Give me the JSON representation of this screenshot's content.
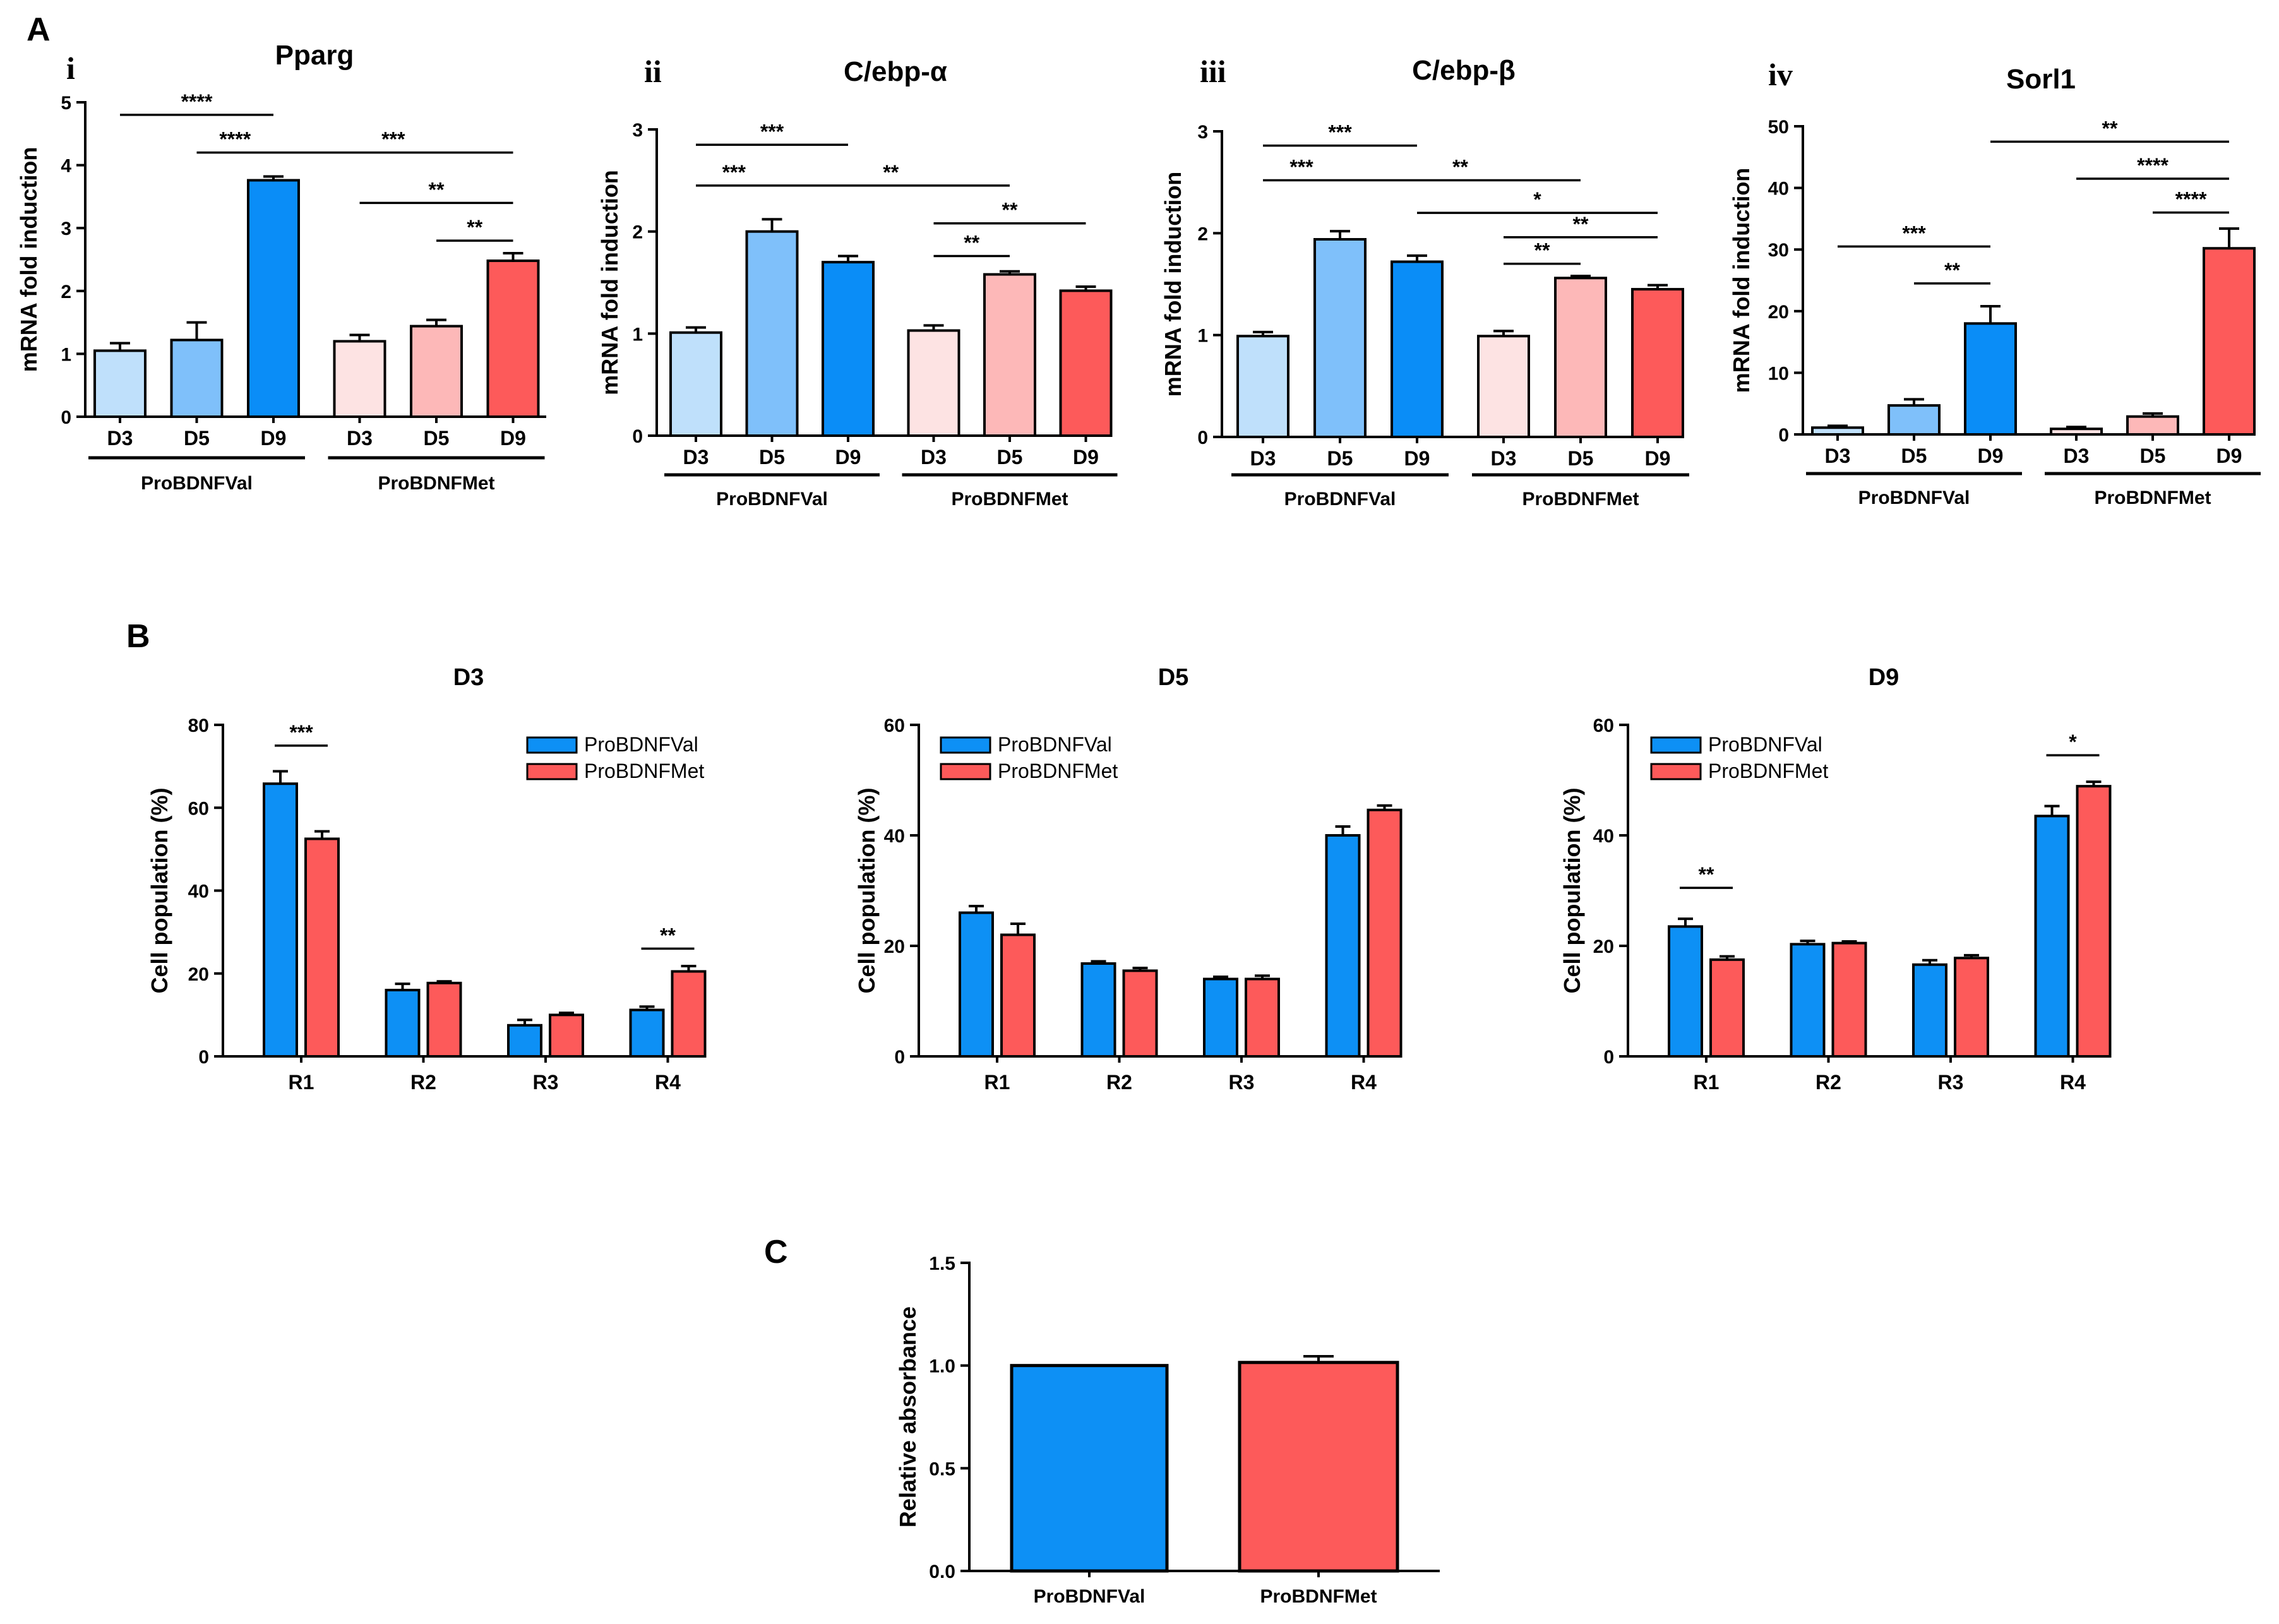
{
  "panel_labels": {
    "A": "A",
    "B": "B",
    "C": "C"
  },
  "colors": {
    "val_light": "#bfe0fb",
    "val_mid": "#7fc0fa",
    "val_dark": "#0a8df7",
    "met_light": "#fde3e3",
    "met_mid": "#fdb8b8",
    "met_dark": "#fd5a5a",
    "blue": "#0d90f5",
    "red": "#fd5a5a"
  },
  "chart_data": [
    {
      "id": "A-i",
      "sublabel": "i",
      "type": "bar",
      "title": "Pparg",
      "ylabel": "mRNA fold induction",
      "ylim": [
        0,
        5
      ],
      "yticks": [
        0,
        1,
        2,
        3,
        4,
        5
      ],
      "categories": [
        "D3",
        "D5",
        "D9",
        "D3",
        "D5",
        "D9"
      ],
      "groups": [
        {
          "label": "ProBDNFVal",
          "from": 0,
          "to": 2
        },
        {
          "label": "ProBDNFMet",
          "from": 3,
          "to": 5
        }
      ],
      "values": [
        1.05,
        1.22,
        3.76,
        1.2,
        1.44,
        2.48
      ],
      "errors": [
        0.12,
        0.28,
        0.06,
        0.1,
        0.1,
        0.12
      ],
      "bar_colors": [
        "val_light",
        "val_mid",
        "val_dark",
        "met_light",
        "met_mid",
        "met_dark"
      ],
      "significance": [
        {
          "from": 0,
          "to": 2,
          "y": 4.8,
          "label": "****"
        },
        {
          "from": 1,
          "to": 2,
          "y": 4.2,
          "label": "****"
        },
        {
          "from": 2,
          "to": 5,
          "y": 4.2,
          "label": "***"
        },
        {
          "from": 3,
          "to": 5,
          "y": 3.4,
          "label": "**"
        },
        {
          "from": 4,
          "to": 5,
          "y": 2.8,
          "label": "**"
        }
      ]
    },
    {
      "id": "A-ii",
      "sublabel": "ii",
      "type": "bar",
      "title": "C/ebp-α",
      "ylabel": "mRNA fold induction",
      "ylim": [
        0,
        3
      ],
      "yticks": [
        0,
        1,
        2,
        3
      ],
      "categories": [
        "D3",
        "D5",
        "D9",
        "D3",
        "D5",
        "D9"
      ],
      "groups": [
        {
          "label": "ProBDNFVal",
          "from": 0,
          "to": 2
        },
        {
          "label": "ProBDNFMet",
          "from": 3,
          "to": 5
        }
      ],
      "values": [
        1.01,
        2.0,
        1.7,
        1.03,
        1.58,
        1.42
      ],
      "errors": [
        0.05,
        0.12,
        0.06,
        0.05,
        0.03,
        0.04
      ],
      "bar_colors": [
        "val_light",
        "val_mid",
        "val_dark",
        "met_light",
        "met_mid",
        "met_dark"
      ],
      "significance": [
        {
          "from": 0,
          "to": 2,
          "y": 2.85,
          "label": "***"
        },
        {
          "from": 0,
          "to": 1,
          "y": 2.45,
          "label": "***"
        },
        {
          "from": 1,
          "to": 4,
          "y": 2.45,
          "label": "**"
        },
        {
          "from": 3,
          "to": 5,
          "y": 2.08,
          "label": "**"
        },
        {
          "from": 3,
          "to": 4,
          "y": 1.76,
          "label": "**"
        }
      ]
    },
    {
      "id": "A-iii",
      "sublabel": "iii",
      "type": "bar",
      "title": "C/ebp-β",
      "ylabel": "mRNA fold induction",
      "ylim": [
        0,
        3
      ],
      "yticks": [
        0,
        1,
        2,
        3
      ],
      "categories": [
        "D3",
        "D5",
        "D9",
        "D3",
        "D5",
        "D9"
      ],
      "groups": [
        {
          "label": "ProBDNFVal",
          "from": 0,
          "to": 2
        },
        {
          "label": "ProBDNFMet",
          "from": 3,
          "to": 5
        }
      ],
      "values": [
        0.99,
        1.94,
        1.72,
        0.99,
        1.56,
        1.45
      ],
      "errors": [
        0.04,
        0.08,
        0.06,
        0.05,
        0.02,
        0.04
      ],
      "bar_colors": [
        "val_light",
        "val_mid",
        "val_dark",
        "met_light",
        "met_mid",
        "met_dark"
      ],
      "significance": [
        {
          "from": 0,
          "to": 2,
          "y": 2.86,
          "label": "***"
        },
        {
          "from": 0,
          "to": 1,
          "y": 2.52,
          "label": "***"
        },
        {
          "from": 1,
          "to": 4,
          "y": 2.52,
          "label": "**"
        },
        {
          "from": 2,
          "to": 5,
          "y": 2.2,
          "label": "*"
        },
        {
          "from": 3,
          "to": 5,
          "y": 1.96,
          "label": "**"
        },
        {
          "from": 3,
          "to": 4,
          "y": 1.7,
          "label": "**"
        }
      ]
    },
    {
      "id": "A-iv",
      "sublabel": "iv",
      "type": "bar",
      "title": "Sorl1",
      "ylabel": "mRNA fold induction",
      "ylim": [
        0,
        50
      ],
      "yticks": [
        0,
        10,
        20,
        30,
        40,
        50
      ],
      "categories": [
        "D3",
        "D5",
        "D9",
        "D3",
        "D5",
        "D9"
      ],
      "groups": [
        {
          "label": "ProBDNFVal",
          "from": 0,
          "to": 2
        },
        {
          "label": "ProBDNFMet",
          "from": 3,
          "to": 5
        }
      ],
      "values": [
        1.1,
        4.7,
        18.0,
        0.9,
        2.9,
        30.2
      ],
      "errors": [
        0.3,
        1.0,
        2.8,
        0.3,
        0.5,
        3.2
      ],
      "bar_colors": [
        "val_light",
        "val_mid",
        "val_dark",
        "met_light",
        "met_mid",
        "met_dark"
      ],
      "significance": [
        {
          "from": 2,
          "to": 5,
          "y": 47.5,
          "label": "**"
        },
        {
          "from": 3,
          "to": 5,
          "y": 41.5,
          "label": "****"
        },
        {
          "from": 4,
          "to": 5,
          "y": 36.0,
          "label": "****"
        },
        {
          "from": 0,
          "to": 2,
          "y": 30.5,
          "label": "***"
        },
        {
          "from": 1,
          "to": 2,
          "y": 24.5,
          "label": "**"
        }
      ]
    },
    {
      "id": "B-D3",
      "type": "bar",
      "title": "D3",
      "ylabel": "Cell population (%)",
      "ylim": [
        0,
        80
      ],
      "yticks": [
        0,
        20,
        40,
        60,
        80
      ],
      "categories": [
        "R1",
        "R2",
        "R3",
        "R4"
      ],
      "series": [
        {
          "name": "ProBDNFVal",
          "color": "blue",
          "values": [
            65.8,
            16.0,
            7.5,
            11.2
          ],
          "errors": [
            3.0,
            1.5,
            1.3,
            0.8
          ]
        },
        {
          "name": "ProBDNFMet",
          "color": "red",
          "values": [
            52.5,
            17.7,
            10.0,
            20.5
          ],
          "errors": [
            1.8,
            0.4,
            0.5,
            1.3
          ]
        }
      ],
      "legend": "top-right",
      "significance": [
        {
          "category": 0,
          "y": 75,
          "label": "***"
        },
        {
          "category": 3,
          "y": 26,
          "label": "**"
        }
      ]
    },
    {
      "id": "B-D5",
      "type": "bar",
      "title": "D5",
      "ylabel": "Cell population (%)",
      "ylim": [
        0,
        60
      ],
      "yticks": [
        0,
        20,
        40,
        60
      ],
      "categories": [
        "R1",
        "R2",
        "R3",
        "R4"
      ],
      "series": [
        {
          "name": "ProBDNFVal",
          "color": "blue",
          "values": [
            26.0,
            16.8,
            14.0,
            40.0
          ],
          "errors": [
            1.2,
            0.4,
            0.4,
            1.6
          ]
        },
        {
          "name": "ProBDNFMet",
          "color": "red",
          "values": [
            22.0,
            15.5,
            14.0,
            44.6
          ],
          "errors": [
            2.0,
            0.5,
            0.6,
            0.8
          ]
        }
      ],
      "legend": "top-left",
      "significance": []
    },
    {
      "id": "B-D9",
      "type": "bar",
      "title": "D9",
      "ylabel": "Cell population (%)",
      "ylim": [
        0,
        60
      ],
      "yticks": [
        0,
        20,
        40,
        60
      ],
      "categories": [
        "R1",
        "R2",
        "R3",
        "R4"
      ],
      "series": [
        {
          "name": "ProBDNFVal",
          "color": "blue",
          "values": [
            23.5,
            20.3,
            16.6,
            43.5
          ],
          "errors": [
            1.4,
            0.6,
            0.8,
            1.8
          ]
        },
        {
          "name": "ProBDNFMet",
          "color": "red",
          "values": [
            17.5,
            20.5,
            17.8,
            48.9
          ],
          "errors": [
            0.6,
            0.3,
            0.5,
            0.8
          ]
        }
      ],
      "legend": "top-left",
      "significance": [
        {
          "category": 0,
          "y": 30.5,
          "label": "**"
        },
        {
          "category": 3,
          "y": 54.5,
          "label": "*"
        }
      ]
    },
    {
      "id": "C",
      "type": "bar",
      "title": "",
      "ylabel": "Relative absorbance",
      "ylim": [
        0,
        1.5
      ],
      "yticks": [
        "0.0",
        "0.5",
        "1.0",
        "1.5"
      ],
      "categories": [
        "ProBDNFVal",
        "ProBDNFMet"
      ],
      "values": [
        1.0,
        1.015
      ],
      "errors": [
        0.0,
        0.03
      ],
      "bar_colors": [
        "blue",
        "red"
      ]
    }
  ]
}
